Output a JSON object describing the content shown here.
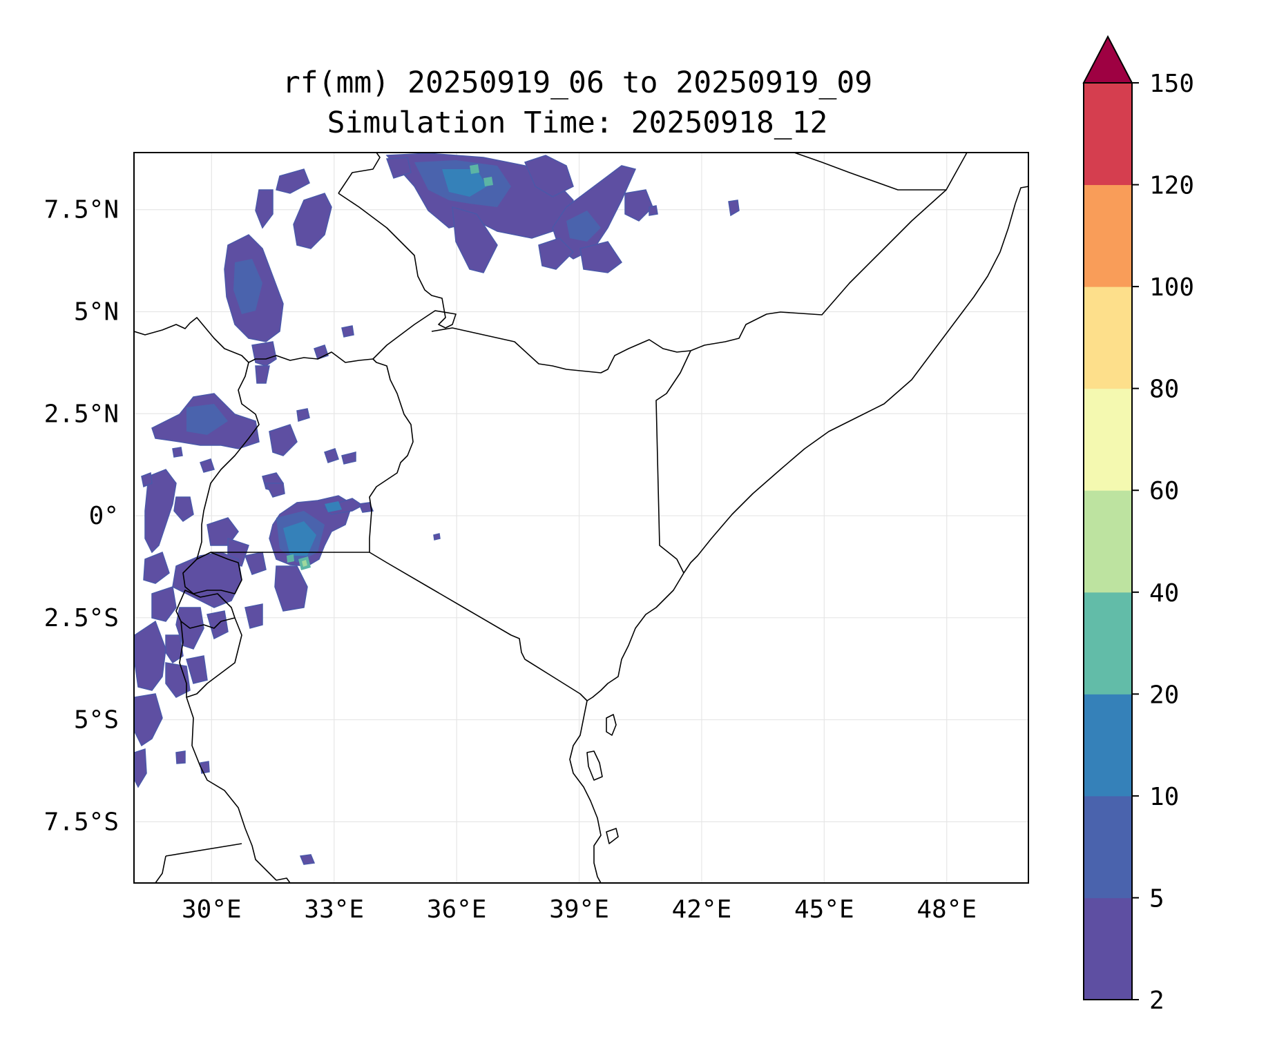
{
  "title": {
    "line1": "rf(mm) 20250919_06 to 20250919_09",
    "line2": "Simulation Time: 20250918_12"
  },
  "map": {
    "lon_range": [
      28.1,
      50.0
    ],
    "lat_range": [
      -9.0,
      8.9
    ],
    "lon_ticks": [
      {
        "value": 30,
        "label": "30°E"
      },
      {
        "value": 33,
        "label": "33°E"
      },
      {
        "value": 36,
        "label": "36°E"
      },
      {
        "value": 39,
        "label": "39°E"
      },
      {
        "value": 42,
        "label": "42°E"
      },
      {
        "value": 45,
        "label": "45°E"
      },
      {
        "value": 48,
        "label": "48°E"
      }
    ],
    "lat_ticks": [
      {
        "value": 7.5,
        "label": "7.5°N"
      },
      {
        "value": 5,
        "label": "5°N"
      },
      {
        "value": 2.5,
        "label": "2.5°N"
      },
      {
        "value": 0,
        "label": "0°"
      },
      {
        "value": -2.5,
        "label": "2.5°S"
      },
      {
        "value": -5,
        "label": "5°S"
      },
      {
        "value": -7.5,
        "label": "7.5°S"
      }
    ]
  },
  "colorbar": {
    "levels": [
      2,
      5,
      10,
      20,
      40,
      60,
      80,
      100,
      120,
      150
    ],
    "labels": [
      "2",
      "5",
      "10",
      "20",
      "40",
      "60",
      "80",
      "100",
      "120",
      "150"
    ],
    "colors": [
      "#5e4fa2",
      "#4a63ad",
      "#3581b9",
      "#62bca8",
      "#bde3a0",
      "#f4f9b0",
      "#fddf8b",
      "#f99d59",
      "#d53e4f"
    ],
    "extend_color": "#9e0142"
  }
}
